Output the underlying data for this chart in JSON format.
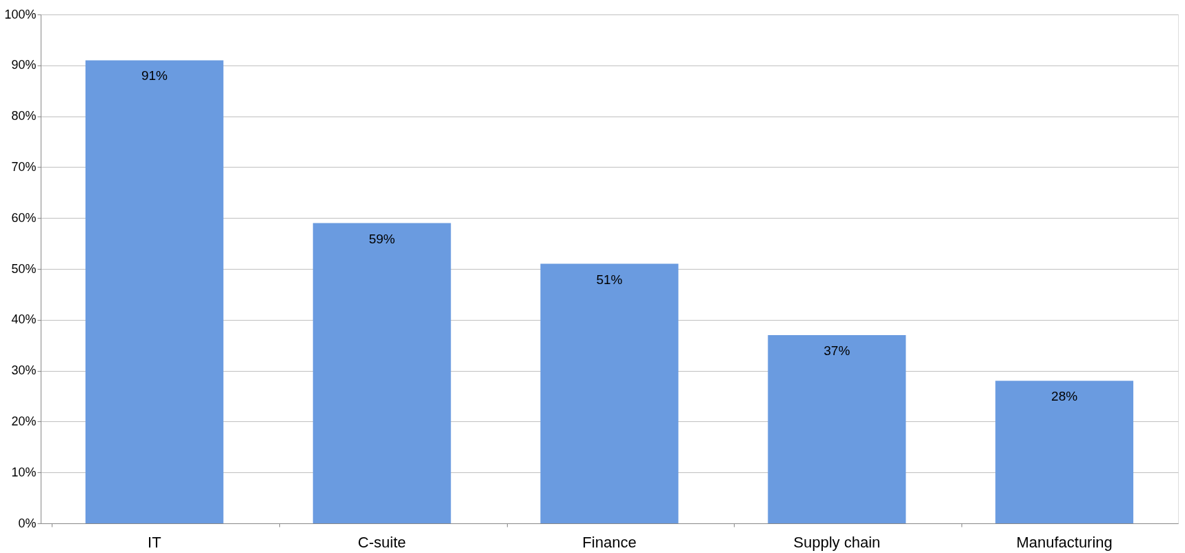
{
  "chart_data": {
    "type": "bar",
    "categories": [
      "IT",
      "C-suite",
      "Finance",
      "Supply chain",
      "Manufacturing"
    ],
    "values": [
      91,
      59,
      51,
      37,
      28
    ],
    "value_labels": [
      "91%",
      "59%",
      "51%",
      "37%",
      "28%"
    ],
    "color": "#6a9be0",
    "ylim": [
      0,
      100
    ],
    "yticks": [
      {
        "value": 0,
        "label": "0%"
      },
      {
        "value": 10,
        "label": "10%"
      },
      {
        "value": 20,
        "label": "20%"
      },
      {
        "value": 30,
        "label": "30%"
      },
      {
        "value": 40,
        "label": "40%"
      },
      {
        "value": 50,
        "label": "50%"
      },
      {
        "value": 60,
        "label": "60%"
      },
      {
        "value": 70,
        "label": "70%"
      },
      {
        "value": 80,
        "label": "80%"
      },
      {
        "value": 90,
        "label": "90%"
      },
      {
        "value": 100,
        "label": "100%"
      }
    ],
    "grid": "y"
  }
}
